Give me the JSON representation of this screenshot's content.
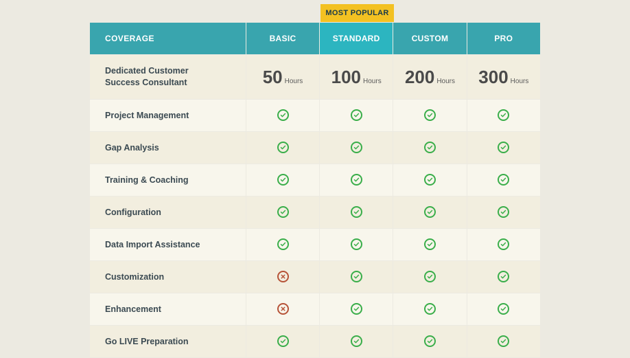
{
  "badge": "MOST POPULAR",
  "coverage_header": "COVERAGE",
  "plans": [
    "BASIC",
    "STANDARD",
    "CUSTOM",
    "PRO"
  ],
  "highlight_index": 1,
  "hours_label": "Hours",
  "hours": [
    "50",
    "100",
    "200",
    "300"
  ],
  "rows": [
    {
      "label": "Dedicated Customer Success Consultant",
      "type": "hours"
    },
    {
      "label": "Project Management",
      "cells": [
        "check",
        "check",
        "check",
        "check"
      ]
    },
    {
      "label": "Gap Analysis",
      "cells": [
        "check",
        "check",
        "check",
        "check"
      ]
    },
    {
      "label": "Training & Coaching",
      "cells": [
        "check",
        "check",
        "check",
        "check"
      ]
    },
    {
      "label": "Configuration",
      "cells": [
        "check",
        "check",
        "check",
        "check"
      ]
    },
    {
      "label": "Data Import Assistance",
      "cells": [
        "check",
        "check",
        "check",
        "check"
      ]
    },
    {
      "label": "Customization",
      "cells": [
        "x",
        "check",
        "check",
        "check"
      ]
    },
    {
      "label": "Enhancement",
      "cells": [
        "x",
        "check",
        "check",
        "check"
      ]
    },
    {
      "label": "Go LIVE Preparation",
      "cells": [
        "check",
        "check",
        "check",
        "check"
      ]
    }
  ],
  "colors": {
    "page_bg": "#eceae1",
    "header_bg": "#39a5ae",
    "header_highlight_bg": "#2cb5c0",
    "badge_bg": "#f3c122",
    "row_bg": "#f2eedf",
    "row_alt_bg": "#f8f6ec",
    "check": "#3aae4a",
    "x": "#b65338",
    "text": "#3b4a52"
  }
}
